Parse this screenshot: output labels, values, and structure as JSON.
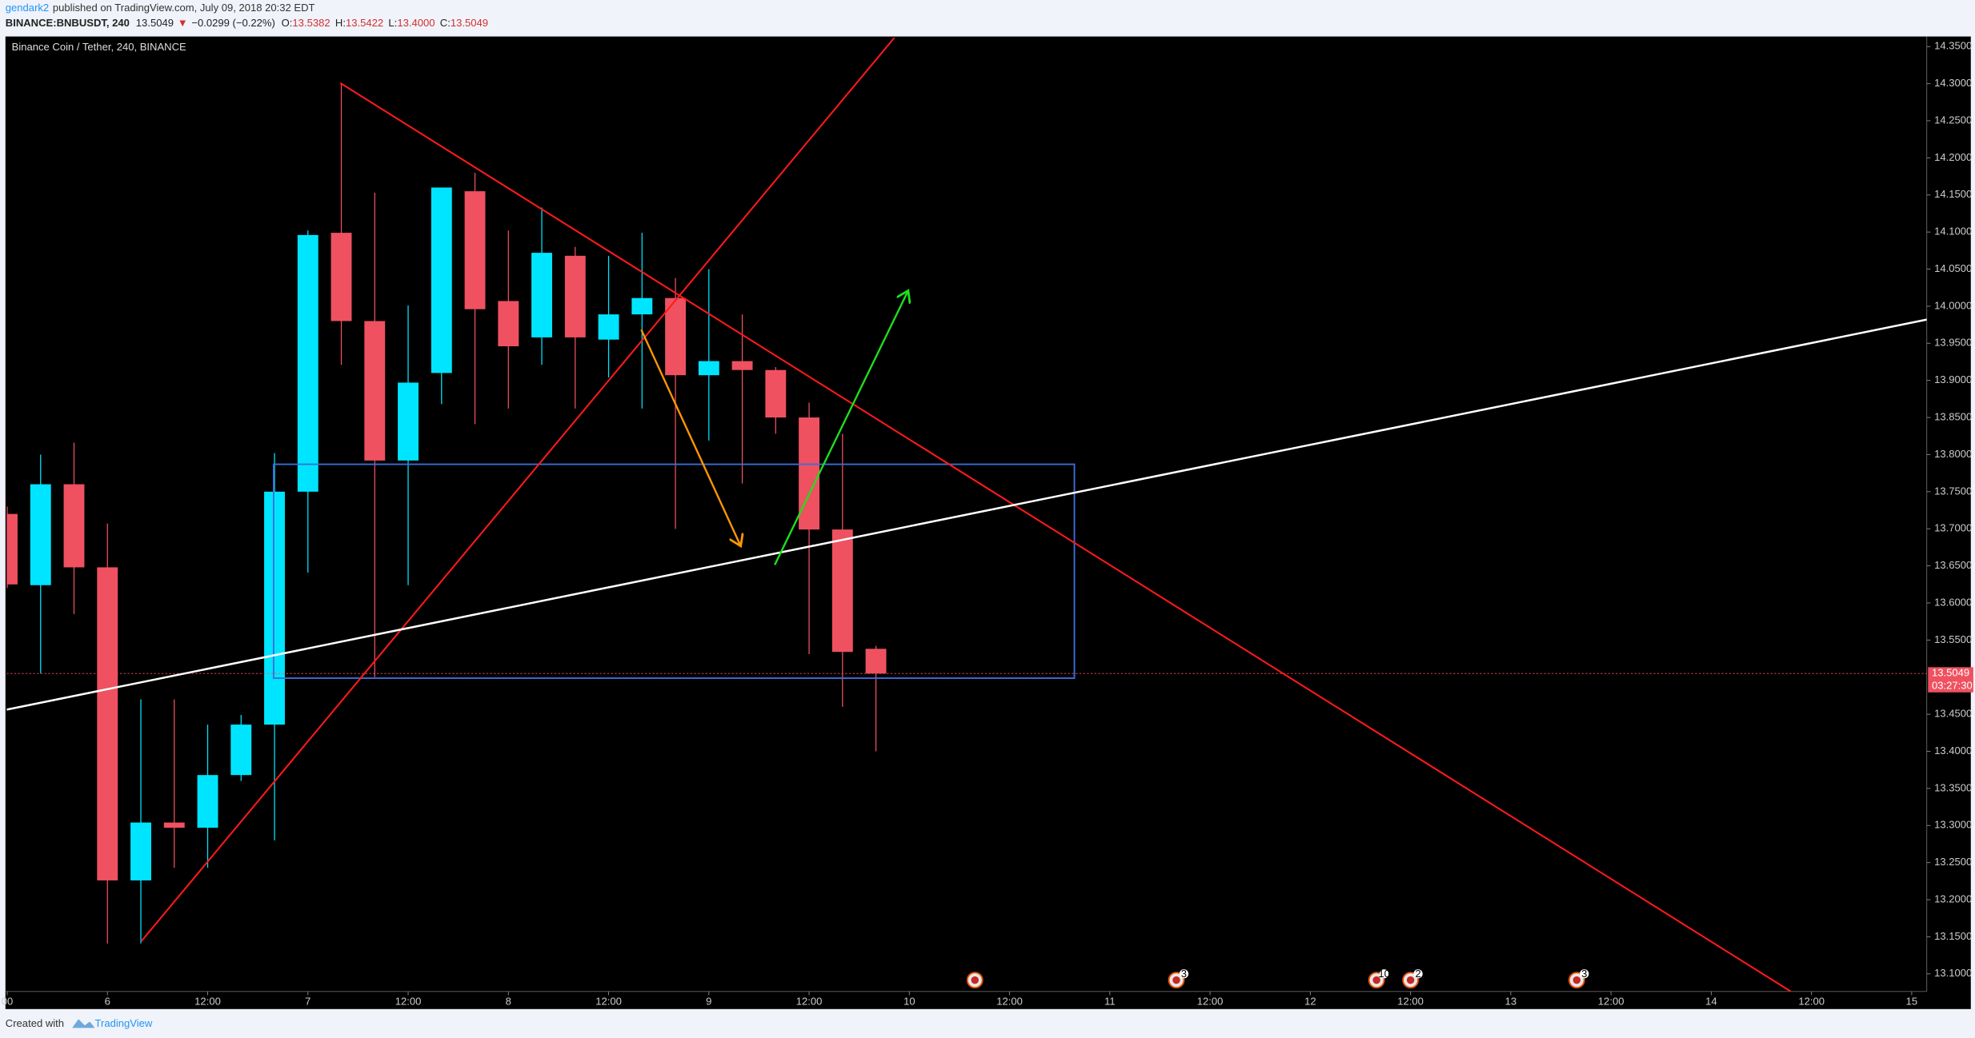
{
  "header": {
    "author": "gendark2",
    "published": "published on TradingView.com, July 09, 2018 20:32 EDT",
    "symbol": "BINANCE:BNBUSDT, 240",
    "last": "13.5049",
    "arrow": "▼",
    "change": "−0.0299 (−0.22%)",
    "ohlc": [
      {
        "key": "O:",
        "value": "13.5382"
      },
      {
        "key": "H:",
        "value": "13.5422"
      },
      {
        "key": "L:",
        "value": "13.4000"
      },
      {
        "key": "C:",
        "value": "13.5049"
      }
    ]
  },
  "chart_data": {
    "type": "candlestick",
    "title": "Binance Coin / Tether, 240, BINANCE",
    "open": [
      13.72,
      13.624,
      13.76,
      13.648,
      13.226,
      13.304,
      13.297,
      13.368,
      13.436,
      13.75,
      14.099,
      13.98,
      13.792,
      13.91,
      14.155,
      14.007,
      13.958,
      14.068,
      13.955,
      13.989,
      14.011,
      13.907,
      13.926,
      13.914,
      13.85,
      13.699,
      13.5382
    ],
    "high": [
      13.73,
      13.8,
      13.816,
      13.707,
      13.47,
      13.47,
      13.436,
      13.449,
      13.802,
      14.102,
      14.301,
      14.153,
      14.001,
      14.16,
      14.18,
      14.102,
      14.133,
      14.08,
      14.068,
      14.099,
      14.038,
      14.05,
      13.989,
      13.918,
      13.87,
      13.828,
      13.5422
    ],
    "low": [
      13.62,
      13.505,
      13.585,
      13.141,
      13.141,
      13.243,
      13.243,
      13.36,
      13.28,
      13.641,
      13.921,
      13.5,
      13.624,
      13.868,
      13.841,
      13.862,
      13.921,
      13.862,
      13.904,
      13.862,
      13.7,
      13.819,
      13.761,
      13.828,
      13.531,
      13.46,
      13.4
    ],
    "close": [
      13.625,
      13.76,
      13.648,
      13.226,
      13.304,
      13.297,
      13.368,
      13.436,
      13.75,
      14.096,
      13.98,
      13.792,
      13.897,
      14.16,
      13.996,
      13.946,
      14.072,
      13.958,
      13.989,
      14.011,
      13.907,
      13.926,
      13.914,
      13.85,
      13.699,
      13.534,
      13.5049
    ],
    "up_color": "#00e5ff",
    "down_color": "#ef5160",
    "xlim": [
      -0.015,
      57.45
    ],
    "xticks": [
      {
        "value": 0,
        "label": "00"
      },
      {
        "value": 3,
        "label": "6"
      },
      {
        "value": 6,
        "label": "12:00"
      },
      {
        "value": 9,
        "label": "7"
      },
      {
        "value": 12,
        "label": "12:00"
      },
      {
        "value": 15,
        "label": "8"
      },
      {
        "value": 18,
        "label": "12:00"
      },
      {
        "value": 21,
        "label": "9"
      },
      {
        "value": 24,
        "label": "12:00"
      },
      {
        "value": 27,
        "label": "10"
      },
      {
        "value": 30,
        "label": "12:00"
      },
      {
        "value": 33,
        "label": "11"
      },
      {
        "value": 36,
        "label": "12:00"
      },
      {
        "value": 39,
        "label": "12"
      },
      {
        "value": 42,
        "label": "12:00"
      },
      {
        "value": 45,
        "label": "13"
      },
      {
        "value": 48,
        "label": "12:00"
      },
      {
        "value": 51,
        "label": "14"
      },
      {
        "value": 54,
        "label": "12:00"
      },
      {
        "value": 57,
        "label": "15"
      }
    ],
    "ylim": [
      13.0763,
      14.3619
    ],
    "yticks": [
      {
        "value": 14.35,
        "label": "14.3500"
      },
      {
        "value": 14.3,
        "label": "14.3000"
      },
      {
        "value": 14.25,
        "label": "14.2500"
      },
      {
        "value": 14.2,
        "label": "14.2000"
      },
      {
        "value": 14.15,
        "label": "14.1500"
      },
      {
        "value": 14.1,
        "label": "14.1000"
      },
      {
        "value": 14.05,
        "label": "14.0500"
      },
      {
        "value": 14,
        "label": "14.0000"
      },
      {
        "value": 13.95,
        "label": "13.9500"
      },
      {
        "value": 13.9,
        "label": "13.9000"
      },
      {
        "value": 13.85,
        "label": "13.8500"
      },
      {
        "value": 13.8,
        "label": "13.8000"
      },
      {
        "value": 13.75,
        "label": "13.7500"
      },
      {
        "value": 13.7,
        "label": "13.7000"
      },
      {
        "value": 13.65,
        "label": "13.6500"
      },
      {
        "value": 13.6,
        "label": "13.6000"
      },
      {
        "value": 13.55,
        "label": "13.5500"
      },
      {
        "value": 13.45,
        "label": "13.4500"
      },
      {
        "value": 13.4,
        "label": "13.4000"
      },
      {
        "value": 13.35,
        "label": "13.3500"
      },
      {
        "value": 13.3,
        "label": "13.3000"
      },
      {
        "value": 13.25,
        "label": "13.2500"
      },
      {
        "value": 13.2,
        "label": "13.2000"
      },
      {
        "value": 13.15,
        "label": "13.1500"
      },
      {
        "value": 13.1,
        "label": "13.1000"
      }
    ],
    "grid": false,
    "countdown": "03:27:30",
    "event_badges": [
      "3",
      "10",
      "2",
      "3"
    ]
  },
  "footer": {
    "created": "Created with",
    "brand": "TradingView"
  }
}
